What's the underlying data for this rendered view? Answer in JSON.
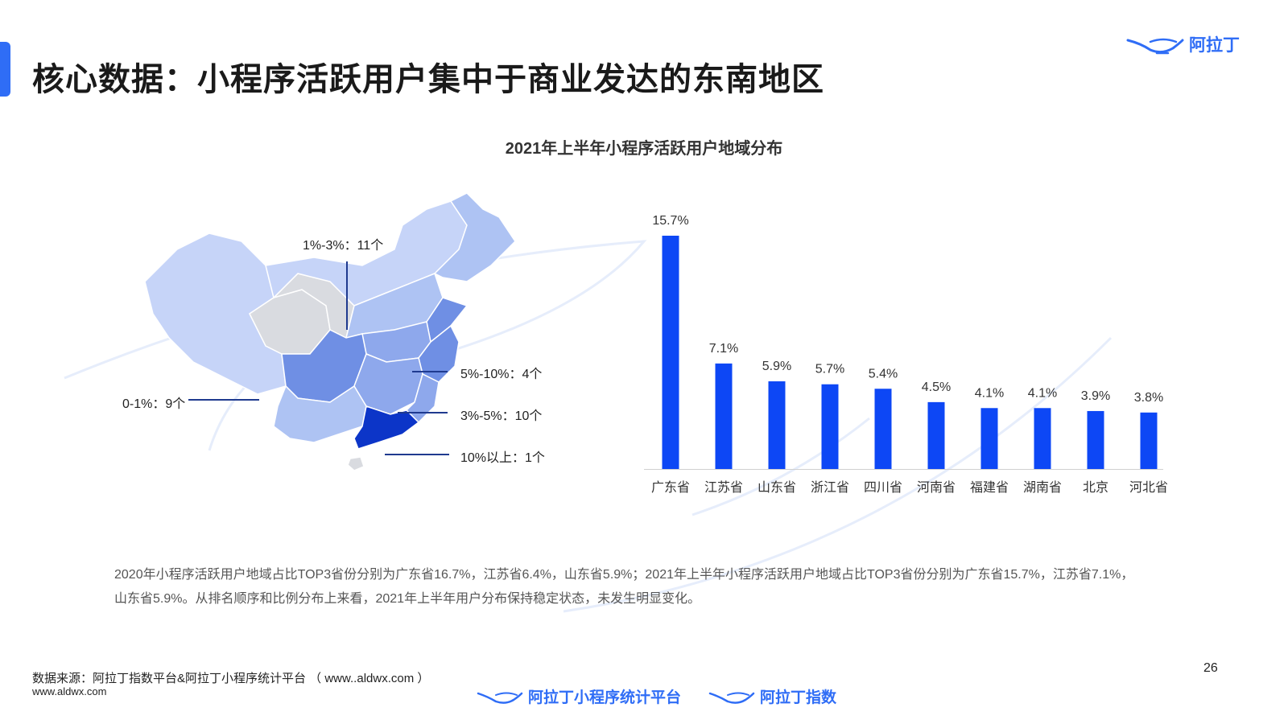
{
  "header": {
    "title": "核心数据：小程序活跃用户集中于商业发达的东南地区",
    "logo_text": "阿拉丁",
    "accent_color": "#2f6df6"
  },
  "map": {
    "labels": {
      "tier_1_3": "1%-3%：11个",
      "tier_5_10": "5%-10%：4个",
      "tier_0_1": "0-1%：9个",
      "tier_3_5": "3%-5%：10个",
      "tier_10_plus": "10%以上：1个"
    },
    "colors": {
      "none": "#d9dbe0",
      "tier_0_1": "#c6d4f8",
      "tier_1_3": "#aec3f3",
      "tier_3_5": "#8ea8ec",
      "tier_5_10": "#6f8fe4",
      "tier_10_plus": "#0c35c8"
    }
  },
  "chart_data": {
    "type": "bar",
    "title": "2021年上半年小程序活跃用户地域分布",
    "categories": [
      "广东省",
      "江苏省",
      "山东省",
      "浙江省",
      "四川省",
      "河南省",
      "福建省",
      "湖南省",
      "北京",
      "河北省"
    ],
    "values": [
      15.7,
      7.1,
      5.9,
      5.7,
      5.4,
      4.5,
      4.1,
      4.1,
      3.9,
      3.8
    ],
    "value_labels": [
      "15.7%",
      "7.1%",
      "5.9%",
      "5.7%",
      "5.4%",
      "4.5%",
      "4.1%",
      "4.1%",
      "3.9%",
      "3.8%"
    ],
    "xlabel": "",
    "ylabel": "",
    "ylim": [
      0,
      15.7
    ],
    "grid": false,
    "bar_color": "#0d47f5"
  },
  "summary": {
    "line1": "2020年小程序活跃用户地域占比TOP3省份分别为广东省16.7%，江苏省6.4%，山东省5.9%；2021年上半年小程序活跃用户地域占比TOP3省份分别为广东省15.7%，江苏省7.1%，",
    "line2": "山东省5.9%。从排名顺序和比例分布上来看，2021年上半年用户分布保持稳定状态，未发生明显变化。"
  },
  "footer": {
    "source": "数据来源：阿拉丁指数平台&阿拉丁小程序统计平台 （ www..aldwx.com ）",
    "site": "www.aldwx.com",
    "page_number": "26",
    "logo1_text": "阿拉丁小程序统计平台",
    "logo2_text": "阿拉丁指数"
  }
}
